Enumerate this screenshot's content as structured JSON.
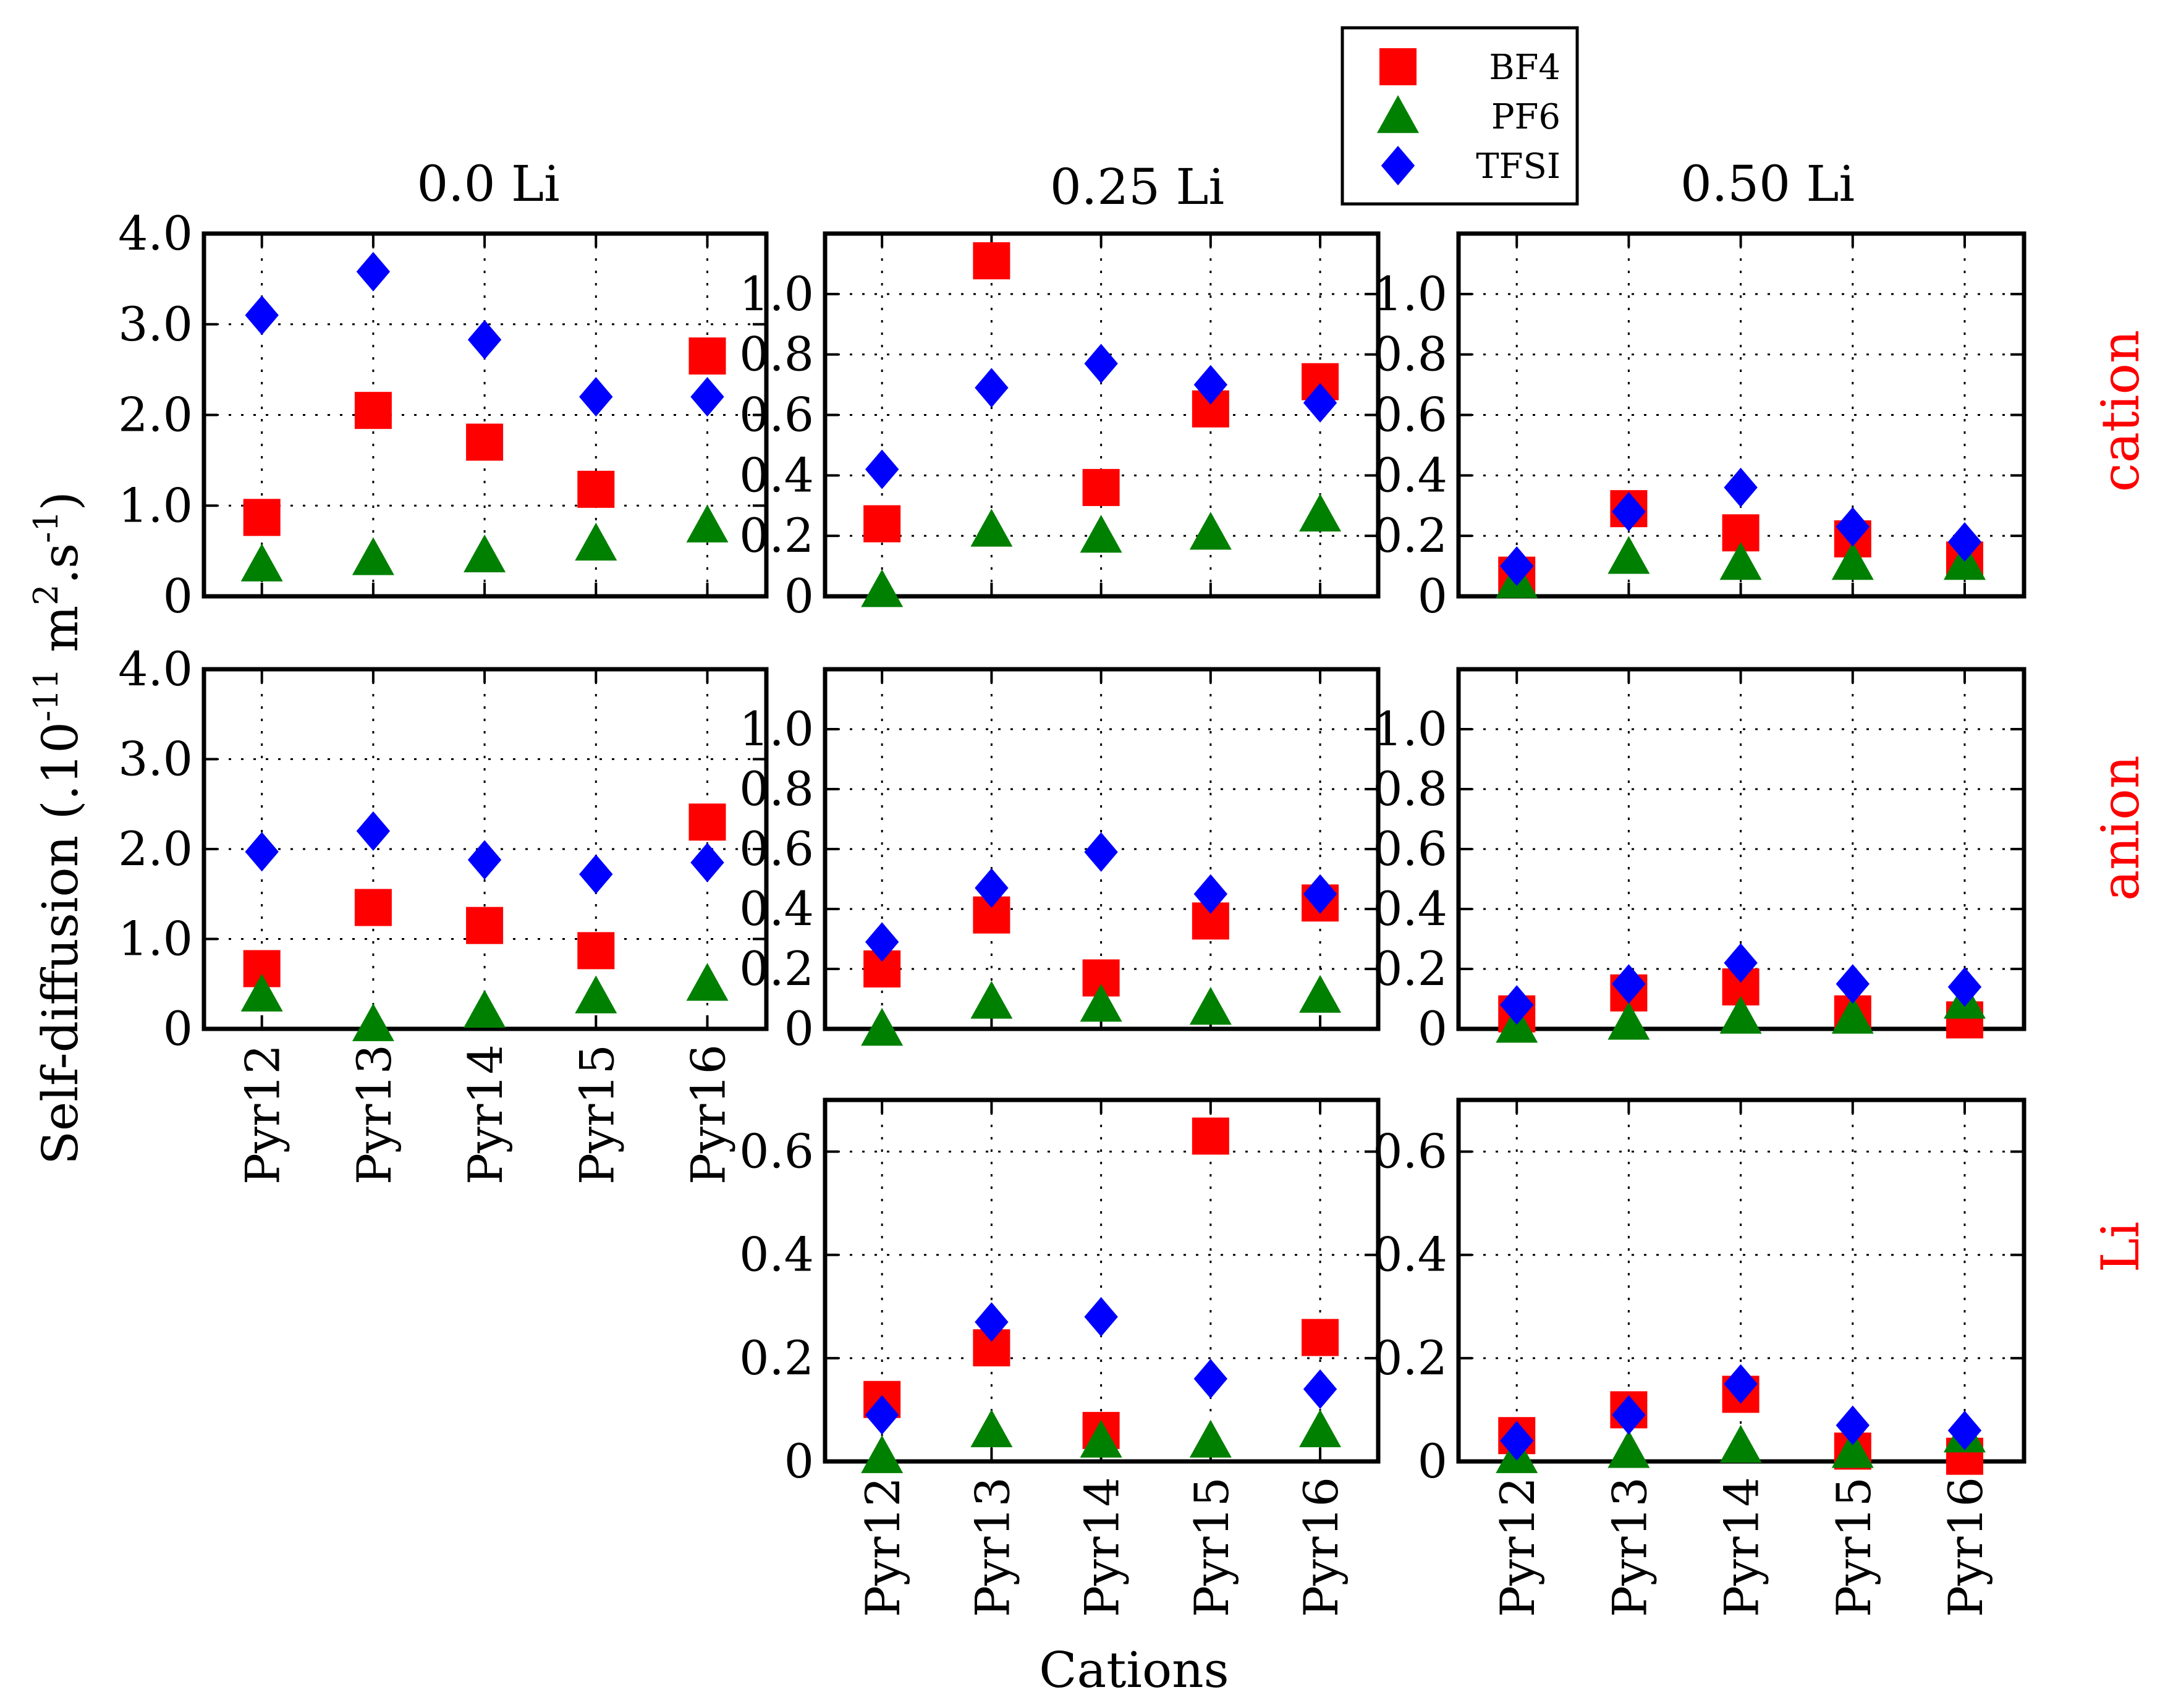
{
  "chart_data": {
    "type": "scatter",
    "xlabel": "Cations",
    "ylabel": "Self-diffusion (.10^-11 m^2.s^-1)",
    "ylabel_parts": {
      "main": "Self-diffusion (.10",
      "exp1": "-11",
      "mid": " m",
      "exp2": "2",
      "dot_s": ".s",
      "exp3": "-1",
      "close": ")"
    },
    "categories": [
      "Pyr12",
      "Pyr13",
      "Pyr14",
      "Pyr15",
      "Pyr16"
    ],
    "legend": {
      "position": "top-center",
      "entries": [
        {
          "name": "BF4",
          "marker": "square",
          "color": "#ff0000"
        },
        {
          "name": "PF6",
          "marker": "triangle",
          "color": "#008000"
        },
        {
          "name": "TFSI",
          "marker": "diamond",
          "color": "#0000ff"
        }
      ]
    },
    "column_titles": [
      "0.0 Li",
      "0.25 Li",
      "0.50 Li"
    ],
    "row_labels": [
      "cation",
      "anion",
      "Li"
    ],
    "row_label_color": "#ff0000",
    "panels": [
      {
        "row": 0,
        "col": 0,
        "ylim": [
          0,
          4.0
        ],
        "yticks": [
          "0",
          "1.0",
          "2.0",
          "3.0",
          "4.0"
        ],
        "ytick_values": [
          0,
          1,
          2,
          3,
          4
        ],
        "series": [
          {
            "name": "BF4",
            "values": [
              0.87,
              2.05,
              1.7,
              1.18,
              2.65
            ]
          },
          {
            "name": "PF6",
            "values": [
              0.35,
              0.42,
              0.45,
              0.58,
              0.78
            ]
          },
          {
            "name": "TFSI",
            "values": [
              3.1,
              3.58,
              2.83,
              2.2,
              2.2
            ]
          }
        ]
      },
      {
        "row": 0,
        "col": 1,
        "ylim": [
          0,
          1.2
        ],
        "yticks": [
          "0",
          "0.2",
          "0.4",
          "0.6",
          "0.8",
          "1.0"
        ],
        "ytick_values": [
          0,
          0.2,
          0.4,
          0.6,
          0.8,
          1.0
        ],
        "series": [
          {
            "name": "BF4",
            "values": [
              0.24,
              1.11,
              0.36,
              0.62,
              0.71
            ]
          },
          {
            "name": "PF6",
            "values": [
              0.02,
              0.22,
              0.2,
              0.21,
              0.27
            ]
          },
          {
            "name": "TFSI",
            "values": [
              0.42,
              0.69,
              0.77,
              0.7,
              0.64
            ]
          }
        ]
      },
      {
        "row": 0,
        "col": 2,
        "ylim": [
          0,
          1.2
        ],
        "yticks": [
          "0",
          "0.2",
          "0.4",
          "0.6",
          "0.8",
          "1.0"
        ],
        "ytick_values": [
          0,
          0.2,
          0.4,
          0.6,
          0.8,
          1.0
        ],
        "series": [
          {
            "name": "BF4",
            "values": [
              0.07,
              0.29,
              0.21,
              0.19,
              0.12
            ]
          },
          {
            "name": "PF6",
            "values": [
              0.05,
              0.13,
              0.11,
              0.11,
              0.11
            ]
          },
          {
            "name": "TFSI",
            "values": [
              0.1,
              0.28,
              0.36,
              0.23,
              0.18
            ]
          }
        ]
      },
      {
        "row": 1,
        "col": 0,
        "ylim": [
          0,
          4.0
        ],
        "yticks": [
          "0",
          "1.0",
          "2.0",
          "3.0",
          "4.0"
        ],
        "ytick_values": [
          0,
          1,
          2,
          3,
          4
        ],
        "series": [
          {
            "name": "BF4",
            "values": [
              0.67,
              1.35,
              1.15,
              0.87,
              2.3
            ]
          },
          {
            "name": "PF6",
            "values": [
              0.38,
              0.05,
              0.2,
              0.36,
              0.5
            ]
          },
          {
            "name": "TFSI",
            "values": [
              1.97,
              2.2,
              1.88,
              1.72,
              1.85
            ]
          }
        ]
      },
      {
        "row": 1,
        "col": 1,
        "ylim": [
          0,
          1.2
        ],
        "yticks": [
          "0",
          "0.2",
          "0.4",
          "0.6",
          "0.8",
          "1.0"
        ],
        "ytick_values": [
          0,
          0.2,
          0.4,
          0.6,
          0.8,
          1.0
        ],
        "series": [
          {
            "name": "BF4",
            "values": [
              0.2,
              0.38,
              0.17,
              0.36,
              0.42
            ]
          },
          {
            "name": "PF6",
            "values": [
              0.0,
              0.09,
              0.08,
              0.07,
              0.11
            ]
          },
          {
            "name": "TFSI",
            "values": [
              0.29,
              0.47,
              0.59,
              0.45,
              0.45
            ]
          }
        ]
      },
      {
        "row": 1,
        "col": 2,
        "ylim": [
          0,
          1.2
        ],
        "yticks": [
          "0",
          "0.2",
          "0.4",
          "0.6",
          "0.8",
          "1.0"
        ],
        "ytick_values": [
          0,
          0.2,
          0.4,
          0.6,
          0.8,
          1.0
        ],
        "series": [
          {
            "name": "BF4",
            "values": [
              0.05,
              0.12,
              0.14,
              0.05,
              0.03
            ]
          },
          {
            "name": "PF6",
            "values": [
              0.01,
              0.02,
              0.04,
              0.04,
              0.09
            ]
          },
          {
            "name": "TFSI",
            "values": [
              0.08,
              0.15,
              0.22,
              0.15,
              0.14
            ]
          }
        ]
      },
      {
        "row": 2,
        "col": 1,
        "ylim": [
          0,
          0.7
        ],
        "yticks": [
          "0",
          "0.2",
          "0.4",
          "0.6"
        ],
        "ytick_values": [
          0,
          0.2,
          0.4,
          0.6
        ],
        "series": [
          {
            "name": "BF4",
            "values": [
              0.12,
              0.22,
              0.06,
              0.63,
              0.24
            ]
          },
          {
            "name": "PF6",
            "values": [
              0.01,
              0.06,
              0.04,
              0.04,
              0.06
            ]
          },
          {
            "name": "TFSI",
            "values": [
              0.09,
              0.27,
              0.28,
              0.16,
              0.14
            ]
          }
        ]
      },
      {
        "row": 2,
        "col": 2,
        "ylim": [
          0,
          0.7
        ],
        "yticks": [
          "0",
          "0.2",
          "0.4",
          "0.6"
        ],
        "ytick_values": [
          0,
          0.2,
          0.4,
          0.6
        ],
        "series": [
          {
            "name": "BF4",
            "values": [
              0.05,
              0.1,
              0.13,
              0.02,
              0.01
            ]
          },
          {
            "name": "PF6",
            "values": [
              0.01,
              0.02,
              0.03,
              0.02,
              0.05
            ]
          },
          {
            "name": "TFSI",
            "values": [
              0.04,
              0.09,
              0.15,
              0.07,
              0.06
            ]
          }
        ]
      }
    ]
  }
}
